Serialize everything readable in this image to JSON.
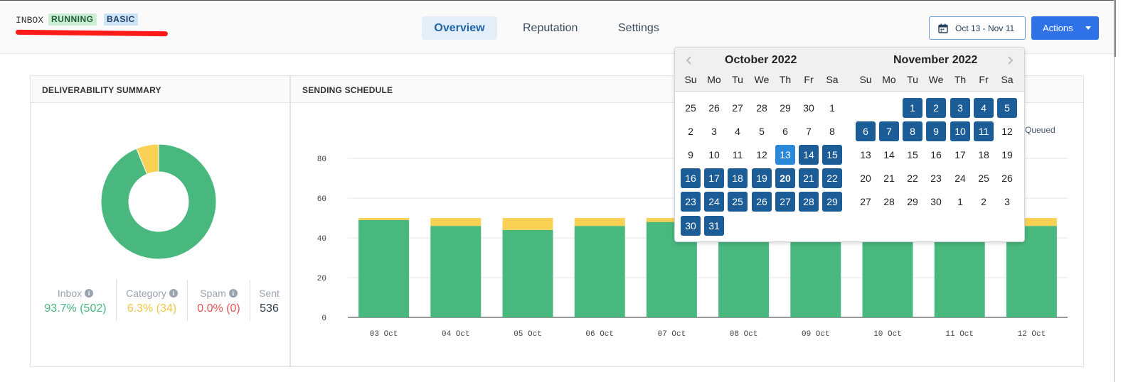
{
  "header": {
    "inbox_label": "INBOX",
    "status_badge": "RUNNING",
    "plan_badge": "BASIC",
    "tabs": [
      {
        "label": "Overview",
        "active": true
      },
      {
        "label": "Reputation",
        "active": false
      },
      {
        "label": "Settings",
        "active": false
      }
    ],
    "date_range": "Oct 13 - Nov 11",
    "actions_label": "Actions"
  },
  "colors": {
    "inbox": "#48b87e",
    "category": "#f9d155",
    "spam": "#e55353",
    "selected_day": "#1d5d97",
    "range_start": "#2b88d8",
    "primary": "#2f72e8"
  },
  "deliverability": {
    "title": "DELIVERABILITY SUMMARY",
    "donut": {
      "inbox_pct": 93.7,
      "category_pct": 6.3,
      "spam_pct": 0.0
    },
    "stats": [
      {
        "label": "Inbox",
        "value": "93.7% (502)",
        "color": "#48b87e",
        "info": true
      },
      {
        "label": "Category",
        "value": "6.3% (34)",
        "color": "#f9d155",
        "info": true
      },
      {
        "label": "Spam",
        "value": "0.0% (0)",
        "color": "#e55353",
        "info": true
      },
      {
        "label": "Sent",
        "value": "536",
        "color": "#2d3a4a",
        "info": false
      }
    ]
  },
  "schedule": {
    "title": "SENDING SCHEDULE",
    "legend_queued": "Queued"
  },
  "chart_data": {
    "type": "bar",
    "stacked": true,
    "categories": [
      "03 Oct",
      "04 Oct",
      "05 Oct",
      "06 Oct",
      "07 Oct",
      "08 Oct",
      "09 Oct",
      "10 Oct",
      "11 Oct",
      "12 Oct"
    ],
    "series": [
      {
        "name": "Inbox",
        "color": "#48b87e",
        "values": [
          49,
          46,
          44,
          46,
          48,
          46,
          46,
          46,
          46,
          46
        ]
      },
      {
        "name": "Category",
        "color": "#f9d155",
        "values": [
          1,
          4,
          6,
          4,
          2,
          4,
          4,
          4,
          4,
          4
        ]
      }
    ],
    "yticks": [
      0,
      20,
      40,
      60,
      80
    ],
    "ylim": [
      0,
      80
    ],
    "grid": true
  },
  "datepicker": {
    "weekdays": [
      "Su",
      "Mo",
      "Tu",
      "We",
      "Th",
      "Fr",
      "Sa"
    ],
    "months": [
      {
        "title": "October 2022",
        "weeks": [
          [
            "25",
            "26",
            "27",
            "28",
            "29",
            "30",
            "1"
          ],
          [
            "2",
            "3",
            "4",
            "5",
            "6",
            "7",
            "8"
          ],
          [
            "9",
            "10",
            "11",
            "12",
            "13",
            "14",
            "15"
          ],
          [
            "16",
            "17",
            "18",
            "19",
            "20",
            "21",
            "22"
          ],
          [
            "23",
            "24",
            "25",
            "26",
            "27",
            "28",
            "29"
          ],
          [
            "30",
            "31",
            "",
            "",
            "",
            "",
            ""
          ]
        ],
        "range_start": "13",
        "today": "20",
        "selected": [
          "13",
          "14",
          "15",
          "16",
          "17",
          "18",
          "19",
          "20",
          "21",
          "22",
          "23",
          "24",
          "25",
          "26",
          "27",
          "28",
          "29",
          "30",
          "31"
        ]
      },
      {
        "title": "November 2022",
        "weeks": [
          [
            "",
            "",
            "1",
            "2",
            "3",
            "4",
            "5"
          ],
          [
            "6",
            "7",
            "8",
            "9",
            "10",
            "11",
            "12"
          ],
          [
            "13",
            "14",
            "15",
            "16",
            "17",
            "18",
            "19"
          ],
          [
            "20",
            "21",
            "22",
            "23",
            "24",
            "25",
            "26"
          ],
          [
            "27",
            "28",
            "29",
            "30",
            "1",
            "2",
            "3"
          ]
        ],
        "range_start": "",
        "today": "",
        "selected": [
          "1",
          "2",
          "3",
          "4",
          "5",
          "6",
          "7",
          "8",
          "9",
          "10",
          "11"
        ]
      }
    ]
  }
}
